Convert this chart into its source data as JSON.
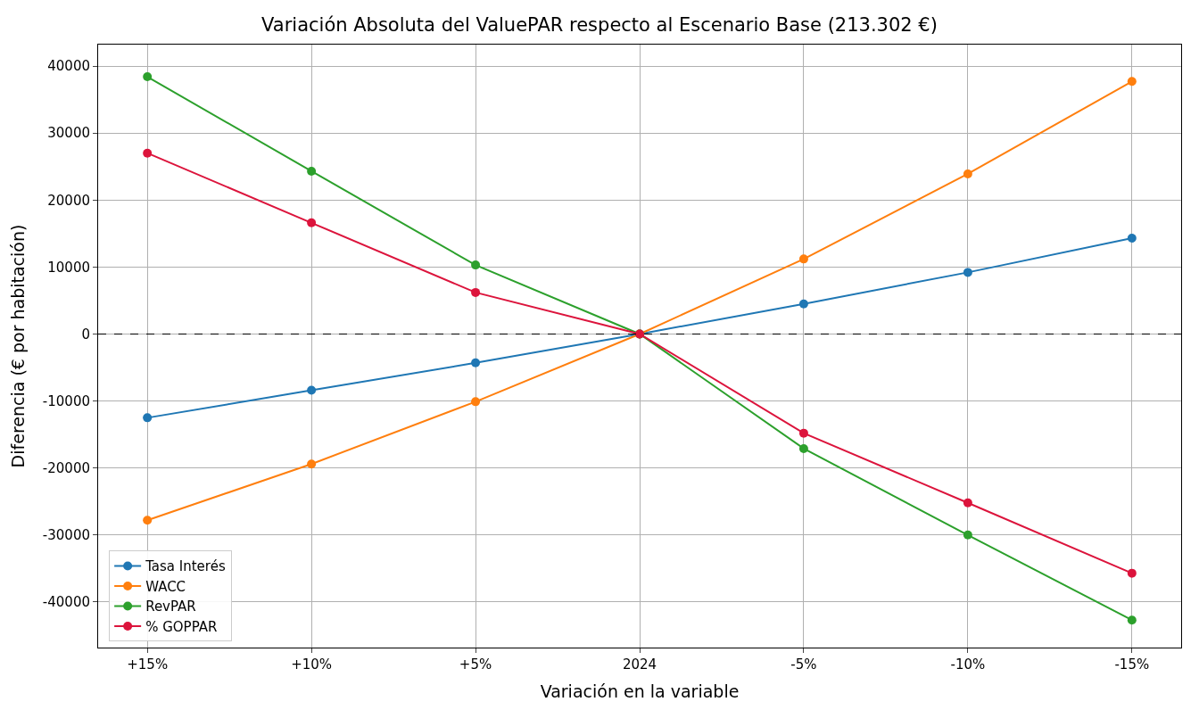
{
  "chart_data": {
    "type": "line",
    "title": "Variación Absoluta del ValuePAR respecto al Escenario Base (213.302 €)",
    "xlabel": "Variación en la variable",
    "ylabel": "Diferencia (€ por habitación)",
    "categories": [
      "+15%",
      "+10%",
      "+5%",
      "2024",
      "-5%",
      "-10%",
      "-15%"
    ],
    "series": [
      {
        "name": "Tasa Interés",
        "color": "#1f77b4",
        "values": [
          -12500,
          -8400,
          -4300,
          0,
          4500,
          9200,
          14300
        ]
      },
      {
        "name": "WACC",
        "color": "#ff7f0e",
        "values": [
          -27800,
          -19400,
          -10100,
          0,
          11200,
          23900,
          37700
        ]
      },
      {
        "name": "RevPAR",
        "color": "#2ca02c",
        "values": [
          38400,
          24300,
          10300,
          0,
          -17100,
          -30000,
          -42700
        ]
      },
      {
        "name": "% GOPPAR",
        "color": "#dc143c",
        "values": [
          27000,
          16600,
          6200,
          0,
          -14800,
          -25200,
          -35700
        ]
      }
    ],
    "ylim": [
      -46800,
      43200
    ],
    "yticks": [
      -40000,
      -30000,
      -20000,
      -10000,
      0,
      10000,
      20000,
      30000,
      40000
    ],
    "ref_lines": [
      {
        "axis": "y",
        "value": 0,
        "color": "#000000",
        "line_style": "dashed"
      }
    ],
    "grid": true,
    "legend": "bottom left",
    "marker": "circle",
    "line_style": "solid"
  }
}
